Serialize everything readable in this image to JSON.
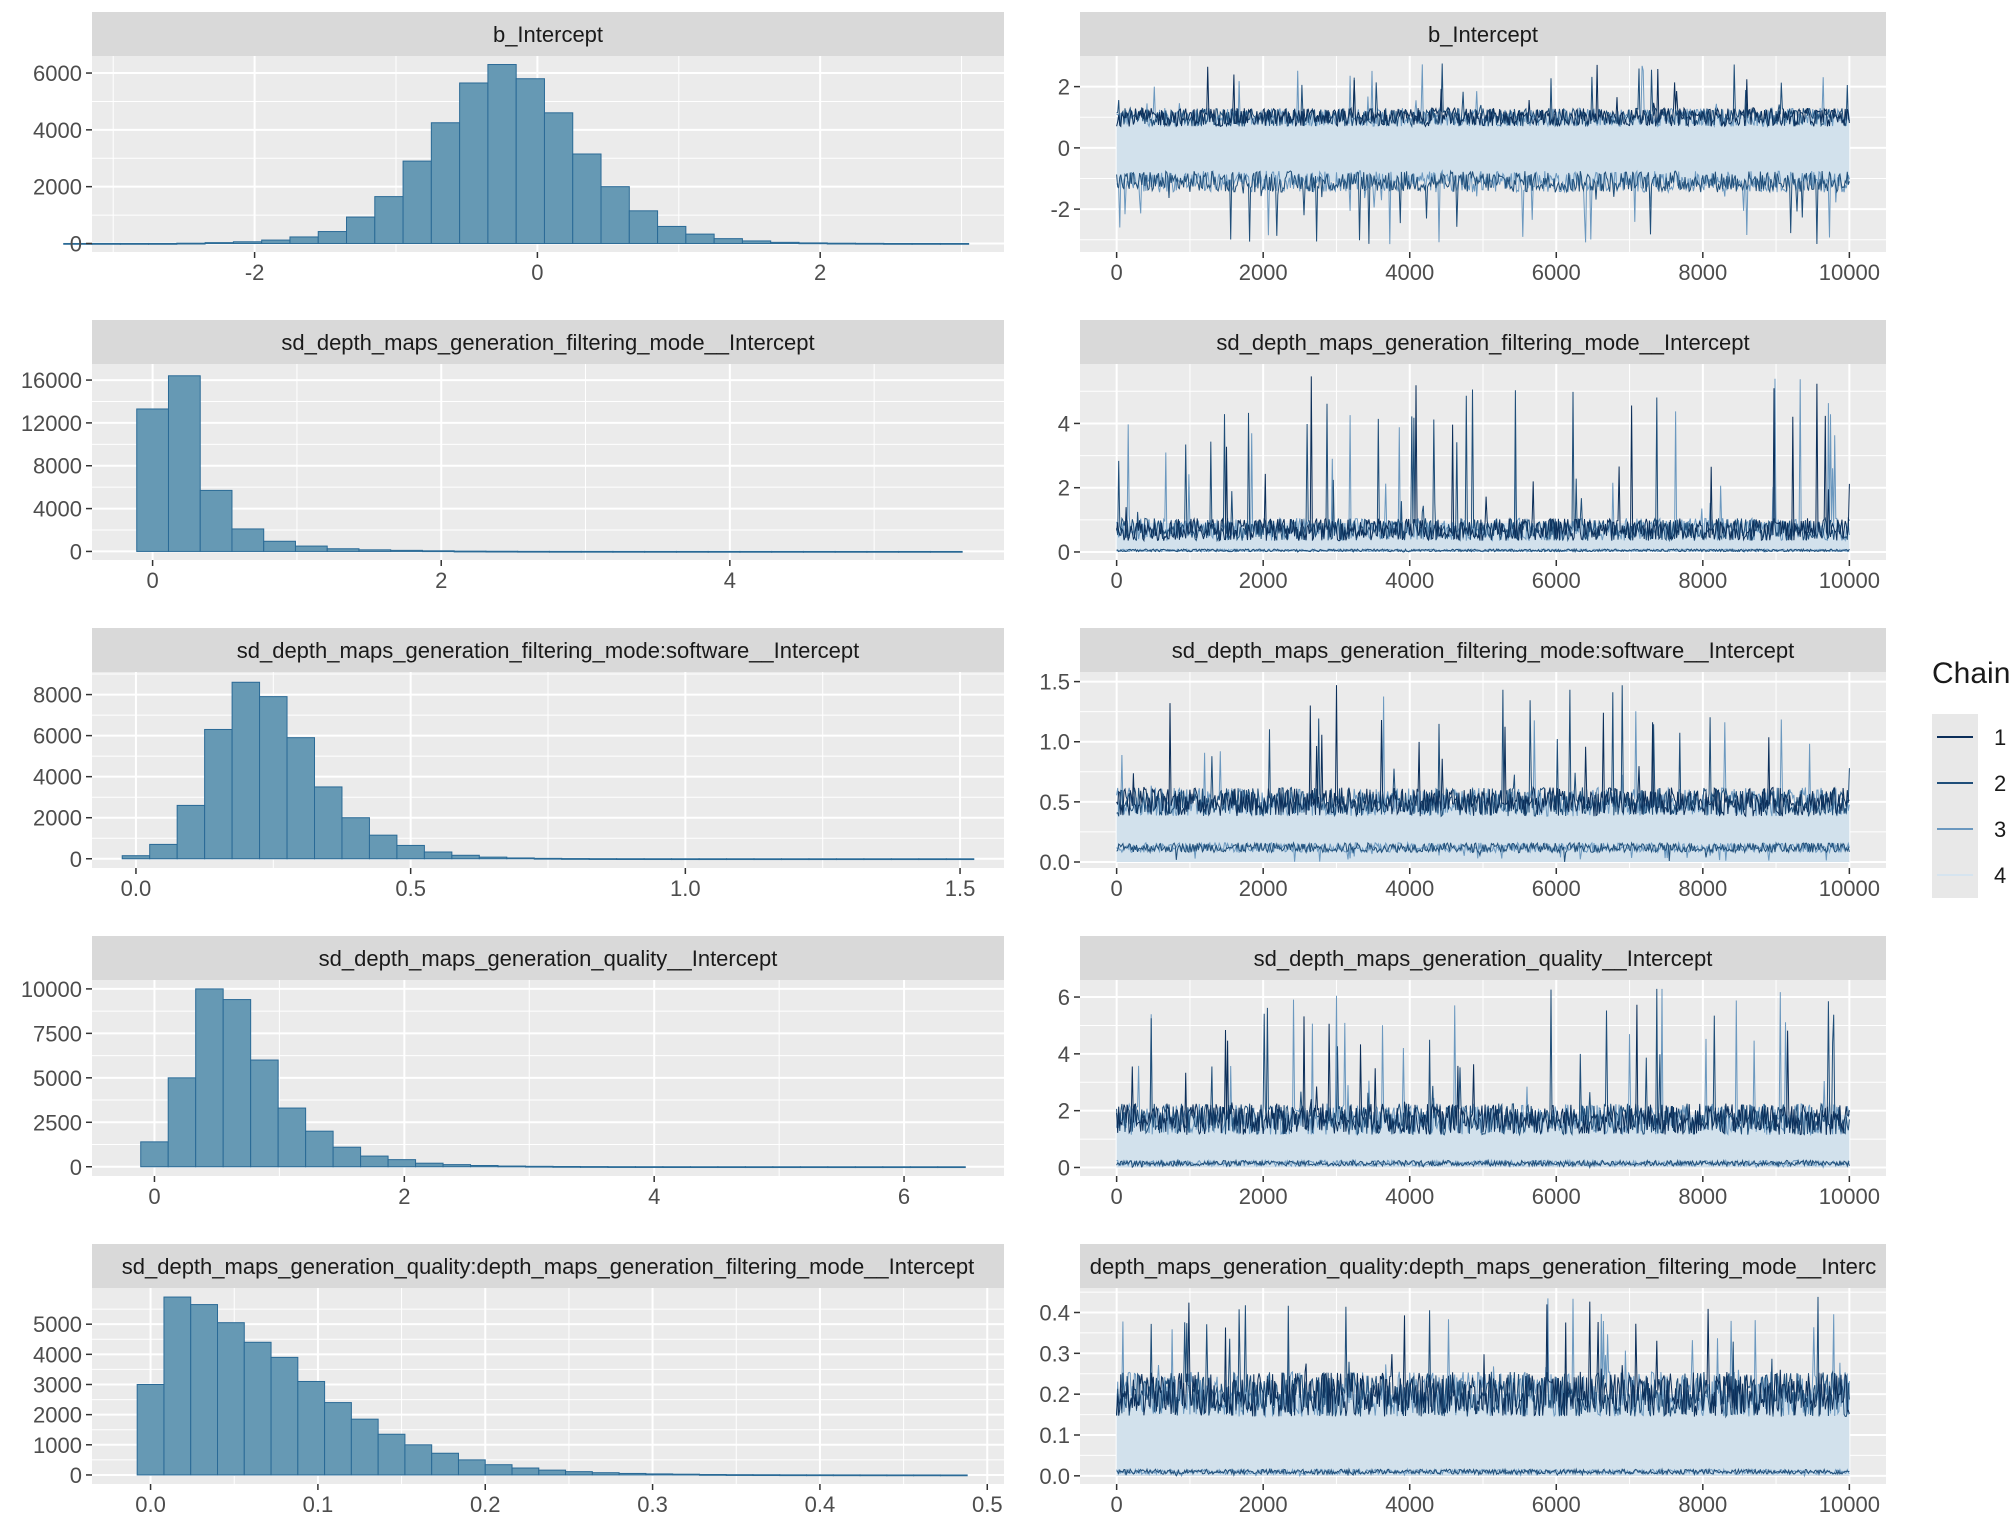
{
  "legend": {
    "title": "Chain",
    "chains": [
      {
        "label": "1",
        "color": "#0b2e59"
      },
      {
        "label": "2",
        "color": "#1f4e79"
      },
      {
        "label": "3",
        "color": "#6b98bf"
      },
      {
        "label": "4",
        "color": "#d6e4ef"
      }
    ]
  },
  "colors": {
    "panel_bg": "#ebebeb",
    "strip_bg": "#d9d9d9",
    "grid": "#ffffff",
    "hist_fill": "#6699b4",
    "hist_edge": "#2a6a96",
    "trace_band": "#d2e1ec",
    "trace_dark": "#0b2e59",
    "trace_mid": "#1f4e79",
    "trace_light": "#6b98bf"
  },
  "chart_data": [
    {
      "type": "bar",
      "strip": "b_Intercept",
      "bins": [
        [
          -3.25,
          0
        ],
        [
          -3.05,
          0
        ],
        [
          -2.85,
          0
        ],
        [
          -2.65,
          0
        ],
        [
          -2.45,
          10
        ],
        [
          -2.25,
          30
        ],
        [
          -2.05,
          60
        ],
        [
          -1.85,
          120
        ],
        [
          -1.65,
          230
        ],
        [
          -1.45,
          420
        ],
        [
          -1.25,
          930
        ],
        [
          -1.05,
          1650
        ],
        [
          -0.85,
          2900
        ],
        [
          -0.65,
          4250
        ],
        [
          -0.45,
          5650
        ],
        [
          -0.25,
          6300
        ],
        [
          -0.05,
          5800
        ],
        [
          0.15,
          4600
        ],
        [
          0.35,
          3150
        ],
        [
          0.55,
          2000
        ],
        [
          0.75,
          1150
        ],
        [
          0.95,
          600
        ],
        [
          1.15,
          330
        ],
        [
          1.35,
          170
        ],
        [
          1.55,
          90
        ],
        [
          1.75,
          40
        ],
        [
          1.95,
          20
        ],
        [
          2.15,
          10
        ],
        [
          2.35,
          5
        ],
        [
          2.55,
          0
        ],
        [
          2.75,
          0
        ],
        [
          2.95,
          0
        ]
      ],
      "xlim": [
        -3.15,
        3.3
      ],
      "ylim": [
        -300,
        6600
      ],
      "xticks": [
        -2,
        0,
        2
      ],
      "xtick_labels": [
        "-2",
        "0",
        "2"
      ],
      "yticks": [
        0,
        2000,
        4000,
        6000
      ],
      "ytick_labels": [
        "0",
        "2000",
        "4000",
        "6000"
      ]
    },
    {
      "type": "line",
      "strip": "b_Intercept",
      "x_range": [
        0,
        10000
      ],
      "xlim": [
        -500,
        10500
      ],
      "ylim": [
        -3.4,
        3.0
      ],
      "xticks": [
        0,
        2000,
        4000,
        6000,
        8000,
        10000
      ],
      "xtick_labels": [
        "0",
        "2000",
        "4000",
        "6000",
        "8000",
        "10000"
      ],
      "yticks": [
        -2,
        0,
        2
      ],
      "ytick_labels": [
        "-2",
        "0",
        "2"
      ],
      "band": [
        -1.1,
        1.0
      ],
      "upper_trace": {
        "center": 1.0,
        "spread": 0.3,
        "spike_max": 2.8
      },
      "lower_trace": {
        "center": -1.1,
        "spread": 0.35,
        "spike_min": -3.2
      }
    },
    {
      "type": "bar",
      "strip": "sd_depth_maps_generation_filtering_mode__Intercept",
      "bins": [
        [
          0.0,
          13300
        ],
        [
          0.22,
          16400
        ],
        [
          0.44,
          5700
        ],
        [
          0.66,
          2100
        ],
        [
          0.88,
          950
        ],
        [
          1.1,
          500
        ],
        [
          1.32,
          250
        ],
        [
          1.54,
          150
        ],
        [
          1.76,
          100
        ],
        [
          1.98,
          60
        ],
        [
          2.2,
          30
        ],
        [
          2.42,
          20
        ],
        [
          2.64,
          10
        ],
        [
          2.86,
          5
        ],
        [
          3.08,
          5
        ],
        [
          3.3,
          3
        ],
        [
          3.52,
          2
        ],
        [
          3.74,
          2
        ],
        [
          3.96,
          1
        ],
        [
          4.18,
          1
        ],
        [
          4.4,
          1
        ],
        [
          4.62,
          1
        ],
        [
          4.84,
          0
        ],
        [
          5.06,
          0
        ],
        [
          5.28,
          0
        ],
        [
          5.5,
          0
        ]
      ],
      "xlim": [
        -0.42,
        5.9
      ],
      "ylim": [
        -800,
        17500
      ],
      "xticks": [
        0,
        2,
        4
      ],
      "xtick_labels": [
        "0",
        "2",
        "4"
      ],
      "yticks": [
        0,
        4000,
        8000,
        12000,
        16000
      ],
      "ytick_labels": [
        "0",
        "4000",
        "8000",
        "12000",
        "16000"
      ]
    },
    {
      "type": "line",
      "strip": "sd_depth_maps_generation_filtering_mode__Intercept",
      "x_range": [
        0,
        10000
      ],
      "xlim": [
        -500,
        10500
      ],
      "ylim": [
        -0.25,
        5.85
      ],
      "xticks": [
        0,
        2000,
        4000,
        6000,
        8000,
        10000
      ],
      "xtick_labels": [
        "0",
        "2000",
        "4000",
        "6000",
        "8000",
        "10000"
      ],
      "yticks": [
        0,
        2,
        4
      ],
      "ytick_labels": [
        "0",
        "2",
        "4"
      ],
      "band": [
        0.0,
        0.9
      ],
      "upper_trace": {
        "center": 0.7,
        "spread": 0.35,
        "spike_max": 5.5
      },
      "lower_trace": {
        "center": 0.05,
        "spread": 0.04,
        "spike_min": 0.0
      }
    },
    {
      "type": "bar",
      "strip": "sd_depth_maps_generation_filtering_mode:software__Intercept",
      "bins": [
        [
          0.0,
          150
        ],
        [
          0.05,
          700
        ],
        [
          0.1,
          2600
        ],
        [
          0.15,
          6300
        ],
        [
          0.2,
          8600
        ],
        [
          0.25,
          7900
        ],
        [
          0.3,
          5900
        ],
        [
          0.35,
          3500
        ],
        [
          0.4,
          2000
        ],
        [
          0.45,
          1150
        ],
        [
          0.5,
          650
        ],
        [
          0.55,
          330
        ],
        [
          0.6,
          170
        ],
        [
          0.65,
          80
        ],
        [
          0.7,
          40
        ],
        [
          0.75,
          20
        ],
        [
          0.8,
          10
        ],
        [
          0.85,
          5
        ],
        [
          0.9,
          3
        ],
        [
          0.95,
          2
        ],
        [
          1.0,
          1
        ],
        [
          1.05,
          1
        ],
        [
          1.1,
          1
        ],
        [
          1.15,
          0
        ],
        [
          1.2,
          0
        ],
        [
          1.25,
          0
        ],
        [
          1.3,
          0
        ],
        [
          1.35,
          0
        ],
        [
          1.4,
          0
        ],
        [
          1.45,
          0
        ],
        [
          1.5,
          0
        ]
      ],
      "xlim": [
        -0.08,
        1.58
      ],
      "ylim": [
        -450,
        9100
      ],
      "xticks": [
        0.0,
        0.5,
        1.0,
        1.5
      ],
      "xtick_labels": [
        "0.0",
        "0.5",
        "1.0",
        "1.5"
      ],
      "yticks": [
        0,
        2000,
        4000,
        6000,
        8000
      ],
      "ytick_labels": [
        "0",
        "2000",
        "4000",
        "6000",
        "8000"
      ]
    },
    {
      "type": "line",
      "strip": "sd_depth_maps_generation_filtering_mode:software__Intercept",
      "x_range": [
        0,
        10000
      ],
      "xlim": [
        -500,
        10500
      ],
      "ylim": [
        -0.05,
        1.58
      ],
      "xticks": [
        0,
        2000,
        4000,
        6000,
        8000,
        10000
      ],
      "xtick_labels": [
        "0",
        "2000",
        "4000",
        "6000",
        "8000",
        "10000"
      ],
      "yticks": [
        0.0,
        0.5,
        1.0,
        1.5
      ],
      "ytick_labels": [
        "0.0",
        "0.5",
        "1.0",
        "1.5"
      ],
      "band": [
        0.0,
        0.48
      ],
      "upper_trace": {
        "center": 0.5,
        "spread": 0.12,
        "spike_max": 1.5
      },
      "lower_trace": {
        "center": 0.12,
        "spread": 0.04,
        "spike_min": 0.0
      }
    },
    {
      "type": "bar",
      "strip": "sd_depth_maps_generation_quality__Intercept",
      "bins": [
        [
          0.0,
          1400
        ],
        [
          0.22,
          5000
        ],
        [
          0.44,
          10000
        ],
        [
          0.66,
          9400
        ],
        [
          0.88,
          6000
        ],
        [
          1.1,
          3300
        ],
        [
          1.32,
          2000
        ],
        [
          1.54,
          1100
        ],
        [
          1.76,
          600
        ],
        [
          1.98,
          400
        ],
        [
          2.2,
          200
        ],
        [
          2.42,
          120
        ],
        [
          2.64,
          70
        ],
        [
          2.86,
          40
        ],
        [
          3.08,
          25
        ],
        [
          3.3,
          15
        ],
        [
          3.52,
          10
        ],
        [
          3.74,
          5
        ],
        [
          3.96,
          4
        ],
        [
          4.18,
          3
        ],
        [
          4.4,
          2
        ],
        [
          4.62,
          2
        ],
        [
          4.84,
          1
        ],
        [
          5.06,
          1
        ],
        [
          5.28,
          1
        ],
        [
          5.5,
          0
        ],
        [
          5.72,
          0
        ],
        [
          5.94,
          0
        ],
        [
          6.16,
          0
        ],
        [
          6.38,
          0
        ]
      ],
      "xlim": [
        -0.5,
        6.8
      ],
      "ylim": [
        -520,
        10500
      ],
      "xticks": [
        0,
        2,
        4,
        6
      ],
      "xtick_labels": [
        "0",
        "2",
        "4",
        "6"
      ],
      "yticks": [
        0,
        2500,
        5000,
        7500,
        10000
      ],
      "ytick_labels": [
        "0",
        "2500",
        "5000",
        "7500",
        "10000"
      ]
    },
    {
      "type": "line",
      "strip": "sd_depth_maps_generation_quality__Intercept",
      "x_range": [
        0,
        10000
      ],
      "xlim": [
        -500,
        10500
      ],
      "ylim": [
        -0.3,
        6.6
      ],
      "xticks": [
        0,
        2000,
        4000,
        6000,
        8000,
        10000
      ],
      "xtick_labels": [
        "0",
        "2000",
        "4000",
        "6000",
        "8000",
        "10000"
      ],
      "yticks": [
        0,
        2,
        4,
        6
      ],
      "ytick_labels": [
        "0",
        "2",
        "4",
        "6"
      ],
      "band": [
        0.0,
        1.85
      ],
      "upper_trace": {
        "center": 1.7,
        "spread": 0.55,
        "spike_max": 6.3
      },
      "lower_trace": {
        "center": 0.15,
        "spread": 0.1,
        "spike_min": 0.0
      }
    },
    {
      "type": "bar",
      "strip": "sd_depth_maps_generation_quality:depth_maps_generation_filtering_mode__Intercept",
      "bins": [
        [
          0.0,
          3000
        ],
        [
          0.016,
          5900
        ],
        [
          0.032,
          5650
        ],
        [
          0.048,
          5050
        ],
        [
          0.064,
          4400
        ],
        [
          0.08,
          3900
        ],
        [
          0.096,
          3100
        ],
        [
          0.112,
          2400
        ],
        [
          0.128,
          1850
        ],
        [
          0.144,
          1350
        ],
        [
          0.16,
          1000
        ],
        [
          0.176,
          720
        ],
        [
          0.192,
          500
        ],
        [
          0.208,
          340
        ],
        [
          0.224,
          230
        ],
        [
          0.24,
          160
        ],
        [
          0.256,
          110
        ],
        [
          0.272,
          75
        ],
        [
          0.288,
          50
        ],
        [
          0.304,
          35
        ],
        [
          0.32,
          25
        ],
        [
          0.336,
          15
        ],
        [
          0.352,
          10
        ],
        [
          0.368,
          8
        ],
        [
          0.384,
          5
        ],
        [
          0.4,
          4
        ],
        [
          0.416,
          3
        ],
        [
          0.432,
          2
        ],
        [
          0.448,
          1
        ],
        [
          0.464,
          1
        ],
        [
          0.48,
          0
        ]
      ],
      "xlim": [
        -0.035,
        0.51
      ],
      "ylim": [
        -300,
        6200
      ],
      "xticks": [
        0.0,
        0.1,
        0.2,
        0.3,
        0.4,
        0.5
      ],
      "xtick_labels": [
        "0.0",
        "0.1",
        "0.2",
        "0.3",
        "0.4",
        "0.5"
      ],
      "yticks": [
        0,
        1000,
        2000,
        3000,
        4000,
        5000
      ],
      "ytick_labels": [
        "0",
        "1000",
        "2000",
        "3000",
        "4000",
        "5000"
      ]
    },
    {
      "type": "line",
      "strip": "depth_maps_generation_quality:depth_maps_generation_filtering_mode__Interc",
      "x_range": [
        0,
        10000
      ],
      "xlim": [
        -500,
        10500
      ],
      "ylim": [
        -0.02,
        0.46
      ],
      "xticks": [
        0,
        2000,
        4000,
        6000,
        8000,
        10000
      ],
      "xtick_labels": [
        "0",
        "2000",
        "4000",
        "6000",
        "8000",
        "10000"
      ],
      "yticks": [
        0.0,
        0.1,
        0.2,
        0.3,
        0.4
      ],
      "ytick_labels": [
        "0.0",
        "0.1",
        "0.2",
        "0.3",
        "0.4"
      ],
      "band": [
        0.0,
        0.2
      ],
      "upper_trace": {
        "center": 0.2,
        "spread": 0.055,
        "spike_max": 0.44
      },
      "lower_trace": {
        "center": 0.01,
        "spread": 0.006,
        "spike_min": 0.0
      }
    }
  ]
}
